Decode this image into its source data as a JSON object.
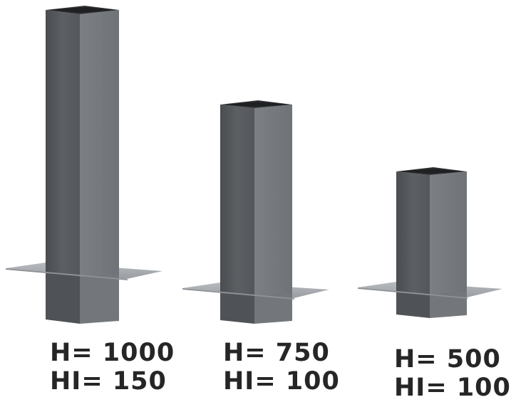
{
  "products": [
    {
      "height_label": "H= 1000",
      "hi_label": "HI= 150",
      "height_mm": 1000,
      "hi_mm": 150
    },
    {
      "height_label": "H= 750",
      "hi_label": "HI= 100",
      "height_mm": 750,
      "hi_mm": 100
    },
    {
      "height_label": "H= 500",
      "hi_label": "HI= 100",
      "height_mm": 500,
      "hi_mm": 100
    }
  ],
  "colors": {
    "background": "#ffffff",
    "duct_front": "#5a5d61",
    "duct_side": "#7a7e82",
    "duct_top_inner": "#2e3033",
    "flange": "#a9adb1",
    "text": "#262626"
  }
}
